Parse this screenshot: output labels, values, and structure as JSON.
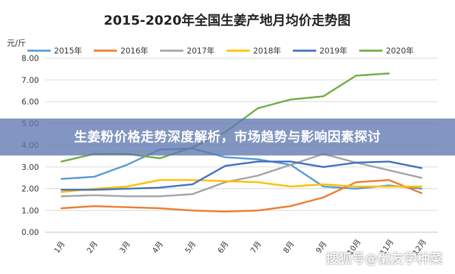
{
  "banner": {
    "text": "生姜粉价格走势深度解析，市场趋势与影响因素探讨"
  },
  "watermark": {
    "text": "搜狐号@懒友学种菜"
  },
  "chart_data": {
    "type": "line",
    "title": "2015-2020年全国生姜产地月均价走势图",
    "ylabel": "元/斤",
    "xlabel": "",
    "categories": [
      "1月",
      "2月",
      "3月",
      "4月",
      "5月",
      "6月",
      "7月",
      "8月",
      "9月",
      "10月",
      "11月",
      "12月"
    ],
    "ylim": [
      0,
      8
    ],
    "yticks": [
      "0.00",
      "1.00",
      "2.00",
      "3.00",
      "4.00",
      "5.00",
      "6.00",
      "7.00",
      "8.00"
    ],
    "grid": true,
    "legend_position": "top",
    "series": [
      {
        "name": "2015年",
        "color": "#5b9bd5",
        "values": [
          2.45,
          2.55,
          3.1,
          3.8,
          3.85,
          3.45,
          3.35,
          3.1,
          2.1,
          2.0,
          2.15,
          2.0
        ]
      },
      {
        "name": "2016年",
        "color": "#ed7d31",
        "values": [
          1.1,
          1.2,
          1.15,
          1.1,
          1.0,
          0.95,
          1.0,
          1.2,
          1.6,
          2.3,
          2.4,
          1.8
        ]
      },
      {
        "name": "2017年",
        "color": "#a5a5a5",
        "values": [
          1.65,
          1.7,
          1.65,
          1.65,
          1.75,
          2.3,
          2.6,
          3.1,
          3.6,
          3.2,
          2.85,
          2.5
        ]
      },
      {
        "name": "2018年",
        "color": "#ffc000",
        "values": [
          1.85,
          2.0,
          2.1,
          2.4,
          2.4,
          2.35,
          2.3,
          2.1,
          2.2,
          2.1,
          2.1,
          2.1
        ]
      },
      {
        "name": "2019年",
        "color": "#4472c4",
        "values": [
          1.95,
          1.95,
          2.0,
          2.05,
          2.2,
          3.05,
          3.25,
          3.25,
          3.0,
          3.2,
          3.25,
          2.95
        ]
      },
      {
        "name": "2020年",
        "color": "#70ad47",
        "values": [
          3.25,
          3.6,
          3.6,
          3.4,
          3.9,
          4.6,
          5.7,
          6.1,
          6.25,
          7.2,
          7.3,
          null
        ]
      }
    ]
  }
}
